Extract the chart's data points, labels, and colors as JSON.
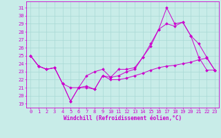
{
  "background_color": "#c8ece8",
  "grid_color": "#a8d8d4",
  "line_color": "#cc00cc",
  "xlabel": "Windchill (Refroidissement éolien,°C)",
  "ylabel_ticks": [
    19,
    20,
    21,
    22,
    23,
    24,
    25,
    26,
    27,
    28,
    29,
    30,
    31
  ],
  "xlim": [
    -0.5,
    23.5
  ],
  "ylim": [
    18.5,
    31.8
  ],
  "series": [
    [
      25.0,
      23.7,
      23.3,
      23.5,
      21.5,
      21.0,
      21.0,
      22.5,
      23.0,
      23.3,
      22.3,
      23.3,
      23.3,
      23.5,
      24.8,
      26.2,
      28.3,
      31.0,
      29.0,
      29.2,
      27.5,
      26.5,
      24.8,
      23.2
    ],
    [
      25.0,
      23.7,
      23.3,
      23.5,
      21.5,
      19.3,
      21.0,
      21.0,
      20.8,
      22.5,
      22.3,
      22.5,
      23.0,
      23.3,
      24.8,
      26.5,
      28.3,
      29.0,
      28.7,
      29.2,
      27.5,
      24.8,
      23.2,
      23.2
    ],
    [
      25.0,
      23.7,
      23.3,
      23.5,
      21.5,
      19.3,
      21.0,
      21.2,
      20.8,
      22.5,
      22.0,
      22.0,
      22.2,
      22.5,
      22.8,
      23.2,
      23.5,
      23.7,
      23.8,
      24.0,
      24.2,
      24.5,
      24.7,
      23.2
    ]
  ],
  "figsize": [
    3.2,
    2.0
  ],
  "dpi": 100,
  "tick_fontsize": 5.0,
  "xlabel_fontsize": 5.5
}
